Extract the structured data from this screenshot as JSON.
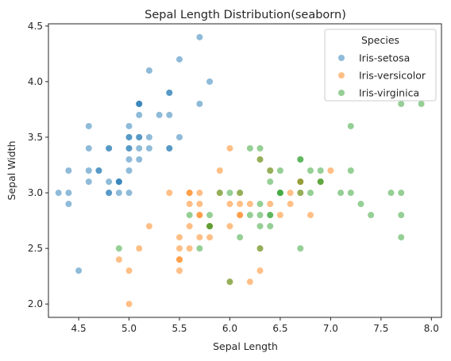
{
  "chart_data": {
    "type": "scatter",
    "title": "Sepal Length Distribution(seaborn)",
    "xlabel": "Sepal Length",
    "ylabel": "Sepal Width",
    "xlim": [
      4.2,
      8.1
    ],
    "ylim": [
      1.88,
      4.52
    ],
    "xticks": [
      4.5,
      5.0,
      5.5,
      6.0,
      6.5,
      7.0,
      7.5,
      8.0
    ],
    "xtick_labels": [
      "4.5",
      "5.0",
      "5.5",
      "6.0",
      "6.5",
      "7.0",
      "7.5",
      "8.0"
    ],
    "yticks": [
      2.0,
      2.5,
      3.0,
      3.5,
      4.0,
      4.5
    ],
    "ytick_labels": [
      "2.0",
      "2.5",
      "3.0",
      "3.5",
      "4.0",
      "4.5"
    ],
    "grid": false,
    "legend": {
      "title": "Species",
      "position": "upper-right"
    },
    "series": [
      {
        "name": "Iris-setosa",
        "color": "#1f77b4",
        "points": [
          [
            5.1,
            3.5
          ],
          [
            4.9,
            3.0
          ],
          [
            4.7,
            3.2
          ],
          [
            4.6,
            3.1
          ],
          [
            5.0,
            3.6
          ],
          [
            5.4,
            3.9
          ],
          [
            4.6,
            3.4
          ],
          [
            5.0,
            3.4
          ],
          [
            4.4,
            2.9
          ],
          [
            4.9,
            3.1
          ],
          [
            5.4,
            3.7
          ],
          [
            4.8,
            3.4
          ],
          [
            4.8,
            3.0
          ],
          [
            4.3,
            3.0
          ],
          [
            5.8,
            4.0
          ],
          [
            5.7,
            4.4
          ],
          [
            5.4,
            3.9
          ],
          [
            5.1,
            3.5
          ],
          [
            5.7,
            3.8
          ],
          [
            5.1,
            3.8
          ],
          [
            5.4,
            3.4
          ],
          [
            5.1,
            3.7
          ],
          [
            4.6,
            3.6
          ],
          [
            5.1,
            3.3
          ],
          [
            4.8,
            3.4
          ],
          [
            5.0,
            3.0
          ],
          [
            5.0,
            3.4
          ],
          [
            5.2,
            3.5
          ],
          [
            5.2,
            3.4
          ],
          [
            4.7,
            3.2
          ],
          [
            4.8,
            3.1
          ],
          [
            5.4,
            3.4
          ],
          [
            5.2,
            4.1
          ],
          [
            5.5,
            4.2
          ],
          [
            4.9,
            3.1
          ],
          [
            5.0,
            3.2
          ],
          [
            5.5,
            3.5
          ],
          [
            4.9,
            3.1
          ],
          [
            4.4,
            3.0
          ],
          [
            5.1,
            3.4
          ],
          [
            5.0,
            3.5
          ],
          [
            4.5,
            2.3
          ],
          [
            4.4,
            3.2
          ],
          [
            5.0,
            3.5
          ],
          [
            5.1,
            3.8
          ],
          [
            4.8,
            3.0
          ],
          [
            5.1,
            3.8
          ],
          [
            4.6,
            3.2
          ],
          [
            5.3,
            3.7
          ],
          [
            5.0,
            3.3
          ]
        ]
      },
      {
        "name": "Iris-versicolor",
        "color": "#ff7f0e",
        "points": [
          [
            7.0,
            3.2
          ],
          [
            6.4,
            3.2
          ],
          [
            6.9,
            3.1
          ],
          [
            5.5,
            2.3
          ],
          [
            6.5,
            2.8
          ],
          [
            5.7,
            2.8
          ],
          [
            6.3,
            3.3
          ],
          [
            4.9,
            2.4
          ],
          [
            6.6,
            2.9
          ],
          [
            5.2,
            2.7
          ],
          [
            5.0,
            2.0
          ],
          [
            5.9,
            3.0
          ],
          [
            6.0,
            2.2
          ],
          [
            6.1,
            2.9
          ],
          [
            5.6,
            2.9
          ],
          [
            6.7,
            3.1
          ],
          [
            5.6,
            3.0
          ],
          [
            5.8,
            2.7
          ],
          [
            6.2,
            2.2
          ],
          [
            5.6,
            2.5
          ],
          [
            5.9,
            3.2
          ],
          [
            6.1,
            2.8
          ],
          [
            6.3,
            2.5
          ],
          [
            6.1,
            2.8
          ],
          [
            6.4,
            2.9
          ],
          [
            6.6,
            3.0
          ],
          [
            6.8,
            2.8
          ],
          [
            6.7,
            3.0
          ],
          [
            6.0,
            2.9
          ],
          [
            5.7,
            2.6
          ],
          [
            5.5,
            2.4
          ],
          [
            5.5,
            2.4
          ],
          [
            5.8,
            2.7
          ],
          [
            6.0,
            2.7
          ],
          [
            5.4,
            3.0
          ],
          [
            6.0,
            3.4
          ],
          [
            6.7,
            3.1
          ],
          [
            6.3,
            2.3
          ],
          [
            5.6,
            3.0
          ],
          [
            5.5,
            2.5
          ],
          [
            5.5,
            2.6
          ],
          [
            6.1,
            3.0
          ],
          [
            5.8,
            2.6
          ],
          [
            5.0,
            2.3
          ],
          [
            5.6,
            2.7
          ],
          [
            5.7,
            3.0
          ],
          [
            5.7,
            2.9
          ],
          [
            6.2,
            2.9
          ],
          [
            5.1,
            2.5
          ],
          [
            5.7,
            2.8
          ]
        ]
      },
      {
        "name": "Iris-virginica",
        "color": "#2ca02c",
        "points": [
          [
            6.3,
            3.3
          ],
          [
            5.8,
            2.7
          ],
          [
            7.1,
            3.0
          ],
          [
            6.3,
            2.9
          ],
          [
            6.5,
            3.0
          ],
          [
            7.6,
            3.0
          ],
          [
            4.9,
            2.5
          ],
          [
            7.3,
            2.9
          ],
          [
            6.7,
            2.5
          ],
          [
            7.2,
            3.6
          ],
          [
            6.5,
            3.2
          ],
          [
            6.4,
            2.7
          ],
          [
            6.8,
            3.0
          ],
          [
            5.7,
            2.5
          ],
          [
            5.8,
            2.8
          ],
          [
            6.4,
            3.2
          ],
          [
            6.5,
            3.0
          ],
          [
            7.7,
            3.8
          ],
          [
            7.7,
            2.6
          ],
          [
            6.0,
            2.2
          ],
          [
            6.9,
            3.2
          ],
          [
            5.6,
            2.8
          ],
          [
            7.7,
            2.8
          ],
          [
            6.3,
            2.7
          ],
          [
            6.7,
            3.3
          ],
          [
            7.2,
            3.2
          ],
          [
            6.2,
            2.8
          ],
          [
            6.1,
            3.0
          ],
          [
            6.4,
            2.8
          ],
          [
            7.2,
            3.0
          ],
          [
            7.4,
            2.8
          ],
          [
            7.9,
            3.8
          ],
          [
            6.4,
            2.8
          ],
          [
            6.3,
            2.8
          ],
          [
            6.1,
            2.6
          ],
          [
            7.7,
            3.0
          ],
          [
            6.3,
            3.4
          ],
          [
            6.4,
            3.1
          ],
          [
            6.0,
            3.0
          ],
          [
            6.9,
            3.1
          ],
          [
            6.7,
            3.1
          ],
          [
            6.9,
            3.1
          ],
          [
            5.8,
            2.7
          ],
          [
            6.8,
            3.2
          ],
          [
            6.7,
            3.3
          ],
          [
            6.7,
            3.0
          ],
          [
            6.3,
            2.5
          ],
          [
            6.5,
            3.0
          ],
          [
            6.2,
            3.4
          ],
          [
            5.9,
            3.0
          ]
        ]
      }
    ]
  }
}
